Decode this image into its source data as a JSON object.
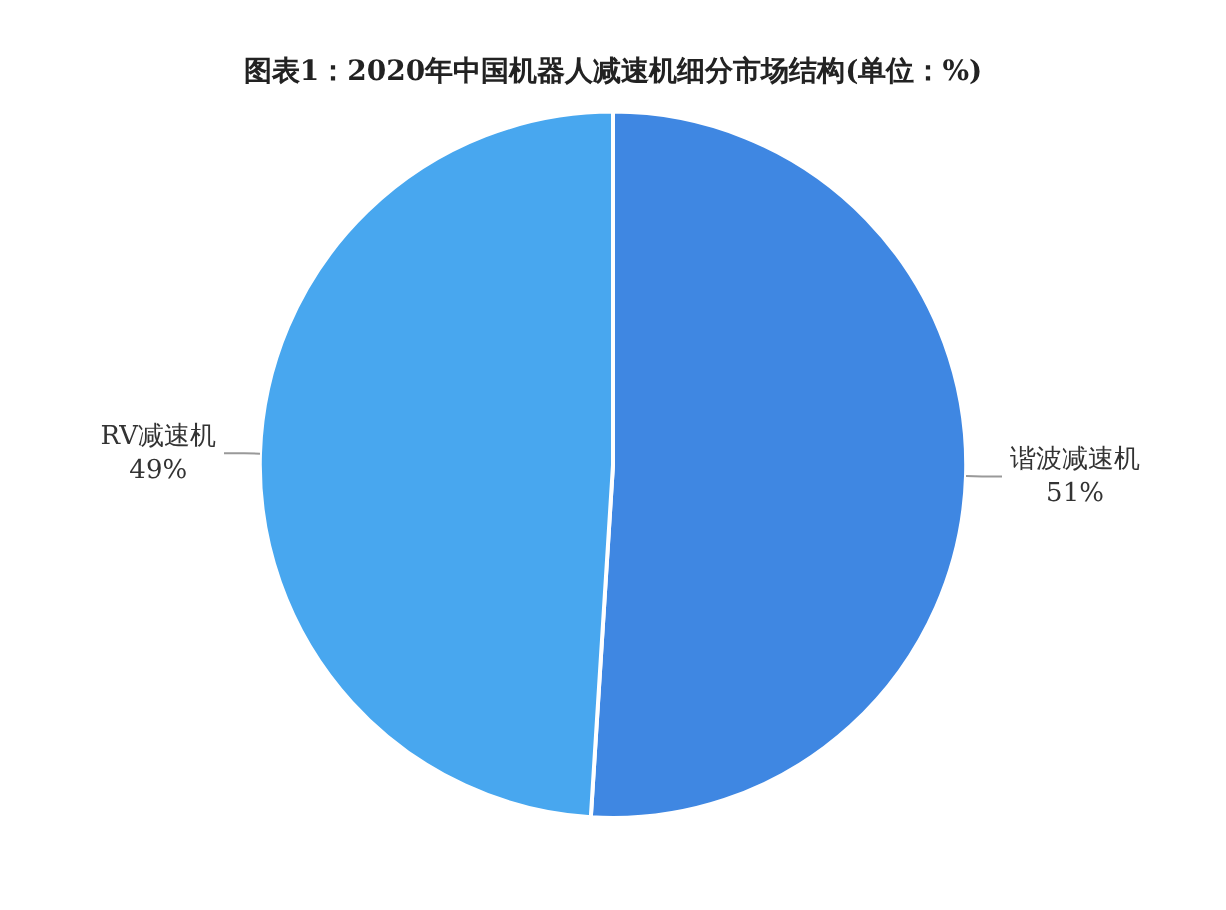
{
  "chart_data": {
    "type": "pie",
    "title": "图表1：2020年中国机器人减速机细分市场结构(单位：%)",
    "categories": [
      "谐波减速机",
      "RV减速机"
    ],
    "values": [
      51,
      49
    ],
    "colors": [
      "#3f87e2",
      "#48a7ef"
    ],
    "value_labels": [
      "51%",
      "49%"
    ],
    "legend": false
  }
}
